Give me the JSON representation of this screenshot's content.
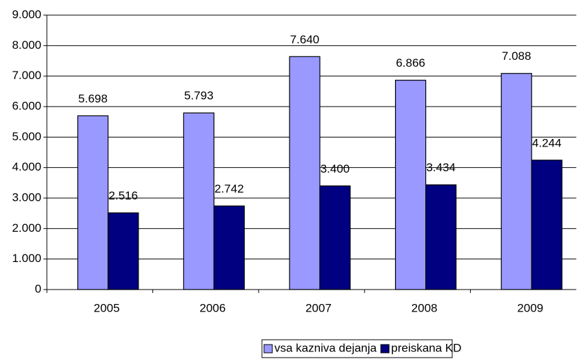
{
  "chart_data": {
    "type": "bar",
    "categories": [
      "2005",
      "2006",
      "2007",
      "2008",
      "2009"
    ],
    "series": [
      {
        "name": "vsa kazniva dejanja",
        "color": "#9999ff",
        "values": [
          5698,
          5793,
          7640,
          6866,
          7088
        ],
        "value_labels": [
          "5.698",
          "5.793",
          "7.640",
          "6.866",
          "7.088"
        ]
      },
      {
        "name": "preiskana KD",
        "color": "#000080",
        "values": [
          2516,
          2742,
          3400,
          3434,
          4244
        ],
        "value_labels": [
          "2.516",
          "2.742",
          "3.400",
          "3.434",
          "4.244"
        ]
      }
    ],
    "ylim": [
      0,
      9000
    ],
    "yticks": [
      0,
      {
        "value": 1000,
        "label": "1.000"
      },
      {
        "value": 2000,
        "label": "2.000"
      },
      {
        "value": 3000,
        "label": "3.000"
      },
      {
        "value": 4000,
        "label": "4.000"
      },
      {
        "value": 5000,
        "label": "5.000"
      },
      {
        "value": 6000,
        "label": "6.000"
      },
      {
        "value": 7000,
        "label": "7.000"
      },
      {
        "value": 8000,
        "label": "8.000"
      },
      {
        "value": 9000,
        "label": "9.000"
      }
    ],
    "grid": true,
    "legend": "bottom"
  }
}
